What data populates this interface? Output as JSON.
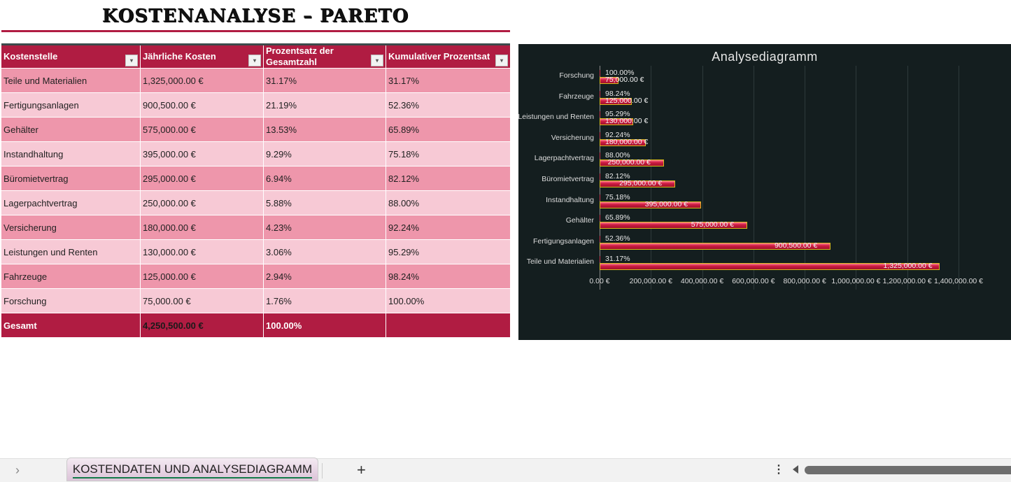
{
  "title": "KOSTENANALYSE – PARETO",
  "table": {
    "headers": [
      "Kostenstelle",
      "Jährliche Kosten",
      "Prozentsatz der Gesamtzahl",
      "Kumulativer Prozentsat"
    ],
    "rows": [
      [
        "Teile und Materialien",
        "1,325,000.00 €",
        "31.17%",
        "31.17%"
      ],
      [
        "Fertigungsanlagen",
        "900,500.00 €",
        "21.19%",
        "52.36%"
      ],
      [
        "Gehälter",
        "575,000.00 €",
        "13.53%",
        "65.89%"
      ],
      [
        "Instandhaltung",
        "395,000.00 €",
        "9.29%",
        "75.18%"
      ],
      [
        "Büromietvertrag",
        "295,000.00 €",
        "6.94%",
        "82.12%"
      ],
      [
        "Lagerpachtvertrag",
        "250,000.00 €",
        "5.88%",
        "88.00%"
      ],
      [
        "Versicherung",
        "180,000.00 €",
        "4.23%",
        "92.24%"
      ],
      [
        "Leistungen und Renten",
        "130,000.00 €",
        "3.06%",
        "95.29%"
      ],
      [
        "Fahrzeuge",
        "125,000.00 €",
        "2.94%",
        "98.24%"
      ],
      [
        "Forschung",
        "75,000.00 €",
        "1.76%",
        "100.00%"
      ]
    ],
    "total": [
      "Gesamt",
      "4,250,500.00 €",
      "100.00%",
      ""
    ],
    "dropdown_icon": "▾"
  },
  "chart_data": {
    "type": "bar",
    "orientation": "horizontal",
    "title": "Analysediagramm",
    "categories": [
      "Forschung",
      "Fahrzeuge",
      "Leistungen und Renten",
      "Versicherung",
      "Lagerpachtvertrag",
      "Büromietvertrag",
      "Instandhaltung",
      "Gehälter",
      "Fertigungsanlagen",
      "Teile und Materialien"
    ],
    "series": [
      {
        "name": "Jährliche Kosten",
        "values": [
          75000,
          125000,
          130000,
          180000,
          250000,
          295000,
          395000,
          575000,
          900500,
          1325000
        ],
        "labels": [
          "75,000.00 €",
          "125,000.00 €",
          "130,000.00 €",
          "180,000.00 €",
          "250,000.00 €",
          "295,000.00 €",
          "395,000.00 €",
          "575,000.00 €",
          "900,500.00 €",
          "1,325,000.00 €"
        ]
      },
      {
        "name": "Kumulativer Prozentsatz",
        "values": [
          1.0,
          0.9824,
          0.9529,
          0.9224,
          0.88,
          0.8212,
          0.7518,
          0.6589,
          0.5236,
          0.3117
        ],
        "labels": [
          "100.00%",
          "98.24%",
          "95.29%",
          "92.24%",
          "88.00%",
          "82.12%",
          "75.18%",
          "65.89%",
          "52.36%",
          "31.17%"
        ]
      }
    ],
    "xticks": [
      "0.00 €",
      "200,000.00 €",
      "400,000.00 €",
      "600,000.00 €",
      "800,000.00 €",
      "1,000,000.00 €",
      "1,200,000.00 €",
      "1,400,000.00 €"
    ],
    "xlim": [
      0,
      1400000
    ],
    "grid": true,
    "colors": {
      "background": "#141e1f",
      "bar": "#d01c44",
      "bar_border": "#d9b81c"
    }
  },
  "tabs": {
    "nav_icon": "›",
    "active": "KOSTENDATEN UND ANALYSEDIAGRAMM",
    "add_icon": "+",
    "more_icon": "⋮"
  },
  "colors": {
    "accent": "#b01c42",
    "row_dark": "#ee96ab",
    "row_light": "#f7c9d5"
  }
}
